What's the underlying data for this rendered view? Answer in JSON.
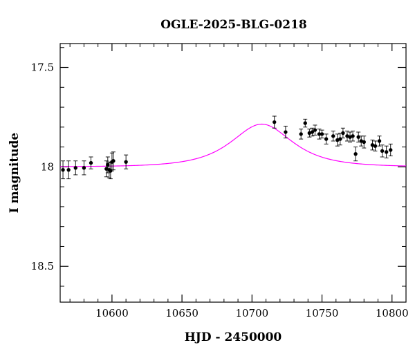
{
  "chart_data": {
    "type": "scatter",
    "title": "OGLE-2025-BLG-0218",
    "xlabel": "HJD - 2450000",
    "ylabel": "I magnitude",
    "xlim": [
      10563,
      10810
    ],
    "ylim": [
      18.68,
      17.38
    ],
    "y_inverted": true,
    "grid": false,
    "x_ticks": [
      {
        "value": 10600,
        "label": "10600"
      },
      {
        "value": 10650,
        "label": "10650"
      },
      {
        "value": 10700,
        "label": "10700"
      },
      {
        "value": 10750,
        "label": "10750"
      },
      {
        "value": 10800,
        "label": "10800"
      }
    ],
    "y_ticks": [
      {
        "value": 17.5,
        "label": "17.5"
      },
      {
        "value": 18,
        "label": "18"
      },
      {
        "value": 18.5,
        "label": "18.5"
      }
    ],
    "x_minor_step": 10,
    "y_minor_step": 0.1,
    "colors": {
      "points": "#000000",
      "model": "#ff00ff",
      "axes": "#000000"
    },
    "model": {
      "name": "",
      "baseline_mag": 18.0,
      "peak_mag": 17.785,
      "peak_x": 10707,
      "width": 28
    },
    "points": [
      {
        "x": 10565,
        "y": 18.015,
        "err": 0.045
      },
      {
        "x": 10569,
        "y": 18.015,
        "err": 0.045
      },
      {
        "x": 10574,
        "y": 18.005,
        "err": 0.035
      },
      {
        "x": 10580,
        "y": 18.005,
        "err": 0.035
      },
      {
        "x": 10585,
        "y": 17.98,
        "err": 0.03
      },
      {
        "x": 10596,
        "y": 18.01,
        "err": 0.04
      },
      {
        "x": 10597,
        "y": 17.99,
        "err": 0.04
      },
      {
        "x": 10598,
        "y": 18.015,
        "err": 0.04
      },
      {
        "x": 10599,
        "y": 18.02,
        "err": 0.04
      },
      {
        "x": 10600,
        "y": 17.975,
        "err": 0.045
      },
      {
        "x": 10601,
        "y": 17.97,
        "err": 0.045
      },
      {
        "x": 10610,
        "y": 17.975,
        "err": 0.035
      },
      {
        "x": 10716,
        "y": 17.775,
        "err": 0.03
      },
      {
        "x": 10724,
        "y": 17.825,
        "err": 0.03
      },
      {
        "x": 10735,
        "y": 17.835,
        "err": 0.025
      },
      {
        "x": 10738,
        "y": 17.78,
        "err": 0.02
      },
      {
        "x": 10741,
        "y": 17.83,
        "err": 0.02
      },
      {
        "x": 10743,
        "y": 17.825,
        "err": 0.02
      },
      {
        "x": 10745,
        "y": 17.815,
        "err": 0.025
      },
      {
        "x": 10748,
        "y": 17.835,
        "err": 0.025
      },
      {
        "x": 10750,
        "y": 17.835,
        "err": 0.02
      },
      {
        "x": 10753,
        "y": 17.86,
        "err": 0.025
      },
      {
        "x": 10758,
        "y": 17.845,
        "err": 0.025
      },
      {
        "x": 10761,
        "y": 17.865,
        "err": 0.03
      },
      {
        "x": 10763,
        "y": 17.86,
        "err": 0.03
      },
      {
        "x": 10765,
        "y": 17.83,
        "err": 0.025
      },
      {
        "x": 10768,
        "y": 17.845,
        "err": 0.025
      },
      {
        "x": 10770,
        "y": 17.85,
        "err": 0.025
      },
      {
        "x": 10772,
        "y": 17.845,
        "err": 0.025
      },
      {
        "x": 10774,
        "y": 17.935,
        "err": 0.035
      },
      {
        "x": 10776,
        "y": 17.85,
        "err": 0.025
      },
      {
        "x": 10778,
        "y": 17.87,
        "err": 0.025
      },
      {
        "x": 10780,
        "y": 17.875,
        "err": 0.03
      },
      {
        "x": 10786,
        "y": 17.89,
        "err": 0.025
      },
      {
        "x": 10788,
        "y": 17.895,
        "err": 0.025
      },
      {
        "x": 10791,
        "y": 17.87,
        "err": 0.025
      },
      {
        "x": 10793,
        "y": 17.92,
        "err": 0.03
      },
      {
        "x": 10796,
        "y": 17.925,
        "err": 0.03
      },
      {
        "x": 10799,
        "y": 17.915,
        "err": 0.03
      }
    ]
  }
}
